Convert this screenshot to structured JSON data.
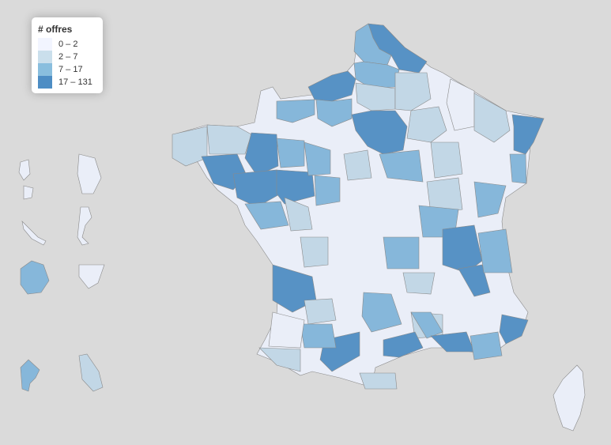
{
  "legend": {
    "title": "# offres",
    "classes": [
      {
        "label": "0 – 2",
        "color": "#eff3ff",
        "icon": "swatch"
      },
      {
        "label": "2 – 7",
        "color": "#bdd7e7",
        "icon": "swatch"
      },
      {
        "label": "7 – 17",
        "color": "#6baed6",
        "icon": "swatch"
      },
      {
        "label": "17 – 131",
        "color": "#2171b5",
        "icon": "swatch"
      }
    ]
  },
  "map": {
    "colors": {
      "background": "#dadada",
      "c0": "#eaeef8",
      "c1": "#c2d7e6",
      "c2": "#86b7da",
      "c3": "#5792c5",
      "border": "#8a8a8a"
    }
  }
}
